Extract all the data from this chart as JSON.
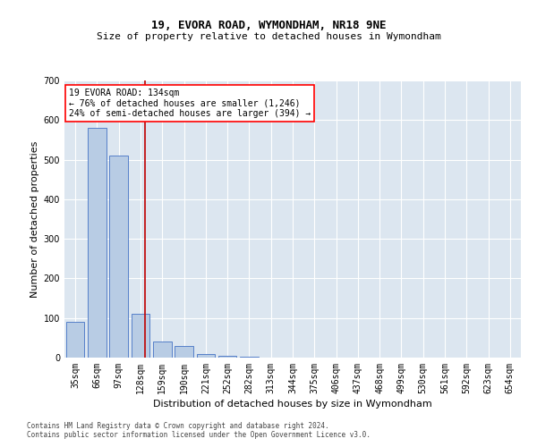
{
  "title1": "19, EVORA ROAD, WYMONDHAM, NR18 9NE",
  "title2": "Size of property relative to detached houses in Wymondham",
  "xlabel": "Distribution of detached houses by size in Wymondham",
  "ylabel": "Number of detached properties",
  "bins": [
    "35sqm",
    "66sqm",
    "97sqm",
    "128sqm",
    "159sqm",
    "190sqm",
    "221sqm",
    "252sqm",
    "282sqm",
    "313sqm",
    "344sqm",
    "375sqm",
    "406sqm",
    "437sqm",
    "468sqm",
    "499sqm",
    "530sqm",
    "561sqm",
    "592sqm",
    "623sqm",
    "654sqm"
  ],
  "counts": [
    90,
    580,
    510,
    110,
    40,
    30,
    10,
    5,
    3,
    1,
    0,
    1,
    0,
    1,
    0,
    0,
    0,
    0,
    0,
    0,
    0
  ],
  "bar_color": "#b8cce4",
  "bar_edge_color": "#4472c4",
  "vline_x": 3.19,
  "vline_color": "#c00000",
  "annotation_text1": "19 EVORA ROAD: 134sqm",
  "annotation_text2": "← 76% of detached houses are smaller (1,246)",
  "annotation_text3": "24% of semi-detached houses are larger (394) →",
  "annotation_box_facecolor": "white",
  "annotation_box_edgecolor": "red",
  "footnote1": "Contains HM Land Registry data © Crown copyright and database right 2024.",
  "footnote2": "Contains public sector information licensed under the Open Government Licence v3.0.",
  "bg_color": "#dce6f0",
  "grid_color": "white",
  "ylim": [
    0,
    700
  ],
  "yticks": [
    0,
    100,
    200,
    300,
    400,
    500,
    600,
    700
  ],
  "title1_fontsize": 9,
  "title2_fontsize": 8,
  "xlabel_fontsize": 8,
  "ylabel_fontsize": 8,
  "tick_fontsize": 7,
  "annot_fontsize": 7,
  "footnote_fontsize": 5.5
}
